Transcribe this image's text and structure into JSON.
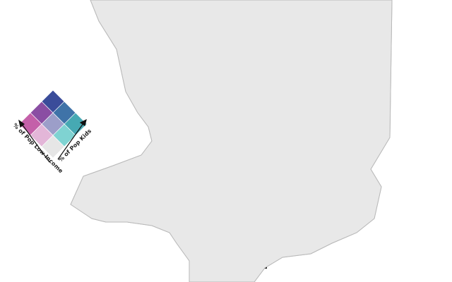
{
  "legend": {
    "low_income_label": "% of Pop Low Income",
    "kids_label": "% of Pop Kids",
    "grid": [
      [
        "#3a4c9a",
        "#3f73a8",
        "#46a9b3"
      ],
      [
        "#8a4ea3",
        "#9c9ec9",
        "#7fd3d2"
      ],
      [
        "#c460a9",
        "#e3b6d8",
        "#e6e6e6"
      ]
    ]
  },
  "colors": {
    "no_data": "#e8e8e8",
    "border": "#b9b9b9",
    "water_black": "#111111"
  }
}
